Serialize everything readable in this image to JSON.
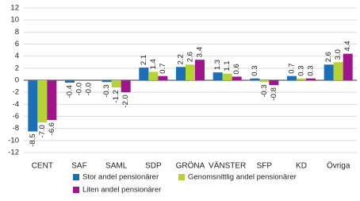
{
  "chart_data": {
    "type": "bar",
    "categories": [
      "CENT",
      "SAF",
      "SAML",
      "SDP",
      "GRÖNA",
      "VÄNSTER",
      "SFP",
      "KD",
      "Övriga"
    ],
    "series": [
      {
        "name": "Stor andel pensionärer",
        "color": "#1a6fb6",
        "values": [
          -8.5,
          -0.4,
          -0.3,
          2.1,
          2.2,
          1.3,
          0.3,
          0.7,
          2.6
        ],
        "value_labels": [
          "-8.5",
          "-0.4",
          "-0.3",
          "2.1",
          "2.2",
          "1.3",
          "0.3",
          "0.7",
          "2.6"
        ]
      },
      {
        "name": "Genomsnittlig andel pensionärer",
        "color": "#b6d334",
        "values": [
          -7.0,
          -0.0,
          -1.2,
          1.4,
          2.6,
          1.1,
          -0.3,
          0.3,
          3.0
        ],
        "value_labels": [
          "-7.0",
          "-0.0",
          "-1.2",
          "1.4",
          "2.6",
          "1.1",
          "-0.3",
          "0.3",
          "3.0"
        ]
      },
      {
        "name": "Liten andel pensionärer",
        "color": "#a0158d",
        "values": [
          -6.6,
          -0.0,
          -2.0,
          0.7,
          3.4,
          0.6,
          -0.8,
          0.3,
          4.4
        ],
        "value_labels": [
          "-6.6",
          "-0.0",
          "-2.0",
          "0.7",
          "3.4",
          "0.6",
          "-0.8",
          "0.3",
          "4.4"
        ]
      }
    ],
    "ylim": [
      -12,
      12
    ],
    "yticks": [
      -12,
      -10,
      -8,
      -6,
      -4,
      -2,
      0,
      2,
      4,
      6,
      8,
      10,
      12
    ],
    "grid": true
  }
}
